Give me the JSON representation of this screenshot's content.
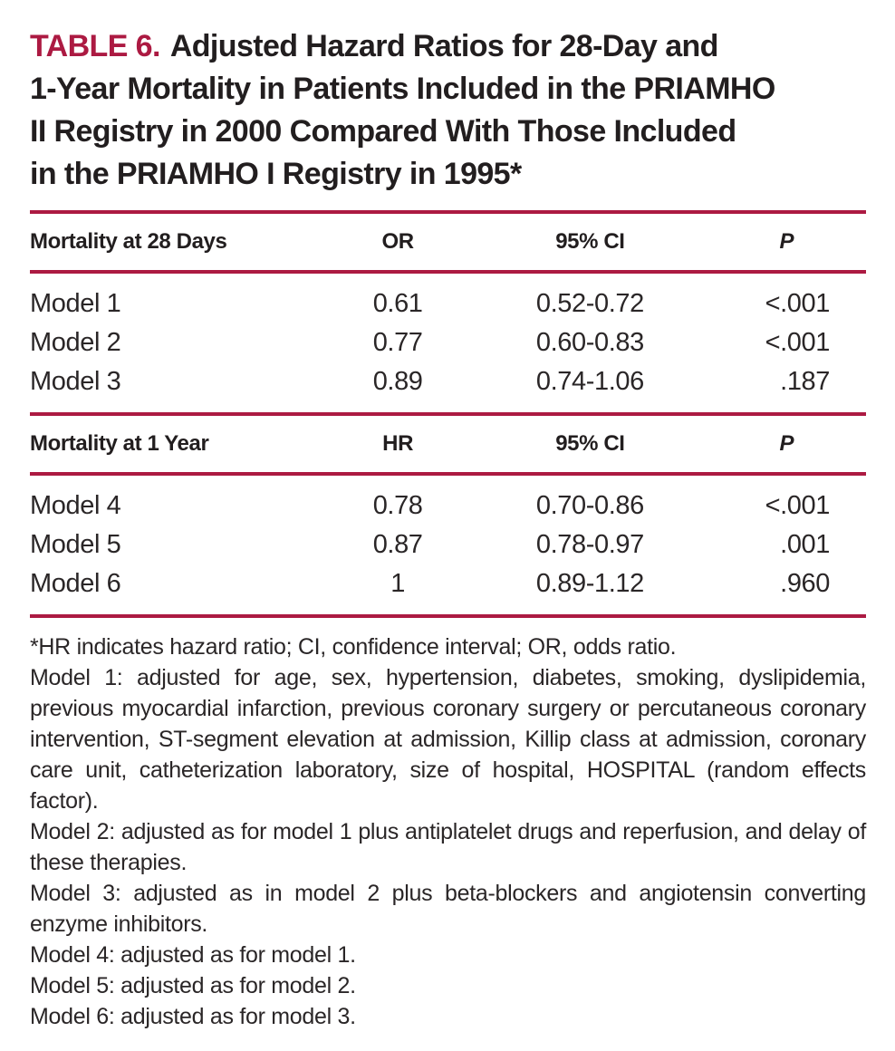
{
  "colors": {
    "accent": "#ac1a42",
    "text": "#221e1f"
  },
  "title": {
    "label": "TABLE 6.",
    "text": "Adjusted Hazard Ratios for 28-Day and\n1-Year Mortality in Patients Included in the PRIAMHO\nII Registry in 2000 Compared With Those Included\nin the PRIAMHO I Registry in 1995*"
  },
  "table": {
    "sections": [
      {
        "header": {
          "label": "Mortality at 28 Days",
          "estimate": "OR",
          "ci": "95% CI",
          "p": "P"
        },
        "rows": [
          {
            "model": "Model 1",
            "estimate": "0.61",
            "ci": "0.52-0.72",
            "p": "<.001"
          },
          {
            "model": "Model 2",
            "estimate": "0.77",
            "ci": "0.60-0.83",
            "p": "<.001"
          },
          {
            "model": "Model 3",
            "estimate": "0.89",
            "ci": "0.74-1.06",
            "p": ".187"
          }
        ]
      },
      {
        "header": {
          "label": "Mortality at 1 Year",
          "estimate": "HR",
          "ci": "95% CI",
          "p": "P"
        },
        "rows": [
          {
            "model": "Model 4",
            "estimate": "0.78",
            "ci": "0.70-0.86",
            "p": "<.001"
          },
          {
            "model": "Model 5",
            "estimate": "0.87",
            "ci": "0.78-0.97",
            "p": ".001"
          },
          {
            "model": "Model 6",
            "estimate": "1",
            "ci": "0.89-1.12",
            "p": ".960"
          }
        ]
      }
    ]
  },
  "footnotes": [
    "*HR indicates hazard ratio; CI, confidence interval; OR, odds ratio.",
    "Model 1: adjusted for age, sex, hypertension, diabetes, smoking, dyslipidemia, previous myocardial infarction, previous coronary surgery or percutaneous coronary intervention, ST-segment elevation at admission, Killip class at admission, coronary care unit, catheterization laboratory, size of hospital, HOSPITAL (random effects factor).",
    "Model 2: adjusted as for model 1 plus antiplatelet drugs and reperfusion, and delay of these therapies.",
    "Model 3: adjusted as in model 2 plus beta-blockers and angiotensin converting enzyme inhibitors.",
    "Model 4: adjusted as for model 1.",
    "Model 5: adjusted as for model 2.",
    "Model 6: adjusted as for model 3."
  ]
}
